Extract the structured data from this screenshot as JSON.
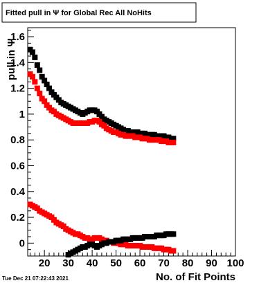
{
  "chart_data": {
    "type": "scatter",
    "title": "Fitted pull in  Ψ  for Global Rec All NoHits",
    "xlabel": "No. of Fit Points",
    "ylabel": "pull in  Ψ",
    "xlim": [
      13,
      100
    ],
    "ylim": [
      -0.1,
      1.67
    ],
    "x_ticks": [
      20,
      30,
      40,
      50,
      60,
      70,
      80,
      90,
      100
    ],
    "y_ticks": [
      0,
      0.2,
      0.4,
      0.6,
      0.8,
      1,
      1.2,
      1.4,
      1.6
    ],
    "x_tick_labels": [
      "20",
      "30",
      "40",
      "50",
      "60",
      "70",
      "80",
      "90",
      "100"
    ],
    "y_tick_labels": [
      "0",
      "0.2",
      "0.4",
      "0.6",
      "0.8",
      "1",
      "1.2",
      "1.4",
      "1.6"
    ],
    "grid": false,
    "series": [
      {
        "color": "#000000",
        "x": [
          14,
          15,
          16,
          17,
          18,
          19,
          20,
          21,
          22,
          23,
          24,
          25,
          26,
          27,
          28,
          29,
          30,
          31,
          32,
          33,
          34,
          35,
          36,
          37,
          38,
          39,
          40,
          41,
          42,
          43,
          44,
          45,
          46,
          47,
          48,
          49,
          50,
          51,
          52,
          53,
          54,
          55,
          56,
          57,
          58,
          59,
          60,
          61,
          62,
          63,
          64,
          65,
          66,
          67,
          68,
          69,
          70,
          71,
          72,
          73,
          74
        ],
        "y": [
          1.5,
          1.48,
          1.44,
          1.38,
          1.34,
          1.29,
          1.26,
          1.23,
          1.2,
          1.17,
          1.15,
          1.13,
          1.11,
          1.09,
          1.08,
          1.07,
          1.06,
          1.05,
          1.04,
          1.03,
          1.02,
          1.01,
          1.0,
          1.01,
          1.02,
          1.03,
          1.03,
          1.03,
          1.02,
          1.0,
          0.98,
          0.96,
          0.95,
          0.94,
          0.93,
          0.92,
          0.91,
          0.9,
          0.89,
          0.88,
          0.87,
          0.87,
          0.86,
          0.86,
          0.86,
          0.86,
          0.85,
          0.85,
          0.85,
          0.84,
          0.84,
          0.84,
          0.84,
          0.83,
          0.83,
          0.83,
          0.83,
          0.82,
          0.82,
          0.81,
          0.81
        ]
      },
      {
        "color": "#ff0000",
        "x": [
          14,
          15,
          16,
          17,
          18,
          19,
          20,
          21,
          22,
          23,
          24,
          25,
          26,
          27,
          28,
          29,
          30,
          31,
          32,
          33,
          34,
          35,
          36,
          37,
          38,
          39,
          40,
          41,
          42,
          43,
          44,
          45,
          46,
          47,
          48,
          49,
          50,
          51,
          52,
          53,
          54,
          55,
          56,
          57,
          58,
          59,
          60,
          61,
          62,
          63,
          64,
          65,
          66,
          67,
          68,
          69,
          70,
          71,
          72,
          73,
          74
        ],
        "y": [
          1.31,
          1.29,
          1.25,
          1.2,
          1.16,
          1.12,
          1.1,
          1.07,
          1.05,
          1.03,
          1.02,
          1.0,
          0.99,
          0.98,
          0.97,
          0.96,
          0.95,
          0.94,
          0.93,
          0.93,
          0.93,
          0.93,
          0.93,
          0.93,
          0.93,
          0.94,
          0.94,
          0.95,
          0.95,
          0.94,
          0.92,
          0.91,
          0.89,
          0.88,
          0.87,
          0.86,
          0.86,
          0.85,
          0.84,
          0.84,
          0.83,
          0.83,
          0.83,
          0.83,
          0.82,
          0.82,
          0.82,
          0.81,
          0.81,
          0.81,
          0.8,
          0.8,
          0.8,
          0.8,
          0.8,
          0.79,
          0.79,
          0.79,
          0.78,
          0.78,
          0.78
        ]
      },
      {
        "color": "#ff0000",
        "x": [
          14,
          15,
          16,
          17,
          18,
          19,
          20,
          21,
          22,
          23,
          24,
          25,
          26,
          27,
          28,
          29,
          30,
          31,
          32,
          33,
          34,
          35,
          36,
          37,
          38,
          39,
          40,
          41,
          42,
          43,
          44,
          45,
          46,
          47,
          48,
          49,
          50,
          51,
          52,
          53,
          54,
          55,
          56,
          57,
          58,
          59,
          60,
          61,
          62,
          63,
          64,
          65,
          66,
          67,
          68,
          69,
          70,
          71,
          72,
          73,
          74
        ],
        "y": [
          0.3,
          0.29,
          0.28,
          0.27,
          0.25,
          0.24,
          0.23,
          0.22,
          0.21,
          0.2,
          0.18,
          0.16,
          0.15,
          0.14,
          0.13,
          0.11,
          0.1,
          0.09,
          0.08,
          0.07,
          0.07,
          0.06,
          0.05,
          0.04,
          0.04,
          0.03,
          0.03,
          0.04,
          0.04,
          0.04,
          0.03,
          0.02,
          0.02,
          0.01,
          0.01,
          0.0,
          0.0,
          0.0,
          -0.01,
          -0.01,
          -0.01,
          -0.02,
          -0.02,
          -0.02,
          -0.02,
          -0.02,
          -0.02,
          -0.03,
          -0.03,
          -0.03,
          -0.03,
          -0.03,
          -0.04,
          -0.04,
          -0.04,
          -0.04,
          -0.05,
          -0.05,
          -0.05,
          -0.06,
          -0.06
        ]
      },
      {
        "color": "#000000",
        "x": [
          30,
          31,
          32,
          33,
          34,
          35,
          36,
          37,
          38,
          39,
          40,
          41,
          42,
          43,
          44,
          45,
          46,
          47,
          48,
          49,
          50,
          51,
          52,
          53,
          54,
          55,
          56,
          57,
          58,
          59,
          60,
          61,
          62,
          63,
          64,
          65,
          66,
          67,
          68,
          69,
          70,
          71,
          72,
          73,
          74
        ],
        "y": [
          -0.09,
          -0.08,
          -0.07,
          -0.06,
          -0.05,
          -0.04,
          -0.03,
          -0.03,
          -0.02,
          -0.01,
          -0.01,
          -0.02,
          -0.03,
          -0.02,
          -0.01,
          0.0,
          0.0,
          0.01,
          0.01,
          0.01,
          0.02,
          0.02,
          0.02,
          0.03,
          0.03,
          0.03,
          0.03,
          0.04,
          0.04,
          0.04,
          0.04,
          0.04,
          0.05,
          0.05,
          0.05,
          0.05,
          0.05,
          0.06,
          0.06,
          0.06,
          0.06,
          0.07,
          0.07,
          0.07,
          0.07
        ]
      }
    ]
  },
  "timestamp": "Tue Dec 21 07:22:43 2021"
}
